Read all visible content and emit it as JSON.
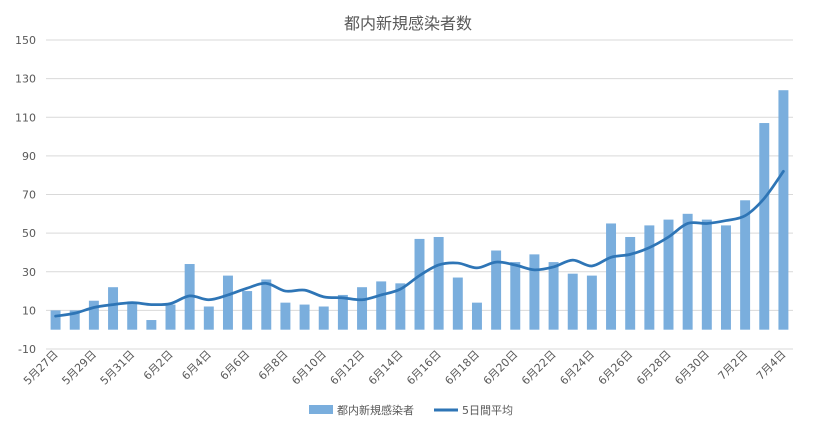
{
  "chart_data": {
    "type": "bar",
    "title": "都内新規感染者数",
    "xlabel": "",
    "ylabel": "",
    "ylim": [
      -10,
      150
    ],
    "yticks": [
      -10,
      10,
      30,
      50,
      70,
      90,
      110,
      130,
      150
    ],
    "grid": true,
    "legend_position": "bottom",
    "categories": [
      "5月27日",
      "5月28日",
      "5月29日",
      "5月30日",
      "5月31日",
      "6月1日",
      "6月2日",
      "6月3日",
      "6月4日",
      "6月5日",
      "6月6日",
      "6月7日",
      "6月8日",
      "6月9日",
      "6月10日",
      "6月11日",
      "6月12日",
      "6月13日",
      "6月14日",
      "6月15日",
      "6月16日",
      "6月17日",
      "6月18日",
      "6月19日",
      "6月20日",
      "6月21日",
      "6月22日",
      "6月23日",
      "6月24日",
      "6月25日",
      "6月26日",
      "6月27日",
      "6月28日",
      "6月29日",
      "6月30日",
      "7月1日",
      "7月2日",
      "7月3日",
      "7月4日"
    ],
    "x_tick_labels": [
      "5月27日",
      "5月29日",
      "5月31日",
      "6月2日",
      "6月4日",
      "6月6日",
      "6月8日",
      "6月10日",
      "6月12日",
      "6月14日",
      "6月16日",
      "6月18日",
      "6月20日",
      "6月22日",
      "6月24日",
      "6月26日",
      "6月28日",
      "6月30日",
      "7月2日",
      "7月4日"
    ],
    "series": [
      {
        "name": "都内新規感染者",
        "type": "bar",
        "color": "#7AAEDD",
        "values": [
          10,
          10,
          15,
          22,
          14,
          5,
          13,
          34,
          12,
          28,
          20,
          26,
          14,
          13,
          12,
          18,
          22,
          25,
          24,
          47,
          48,
          27,
          14,
          41,
          35,
          39,
          35,
          29,
          28,
          55,
          48,
          54,
          57,
          60,
          57,
          54,
          67,
          107,
          124
        ]
      },
      {
        "name": "5日間平均",
        "type": "line",
        "color": "#2E75B6",
        "values": [
          7,
          8.5,
          11.5,
          13,
          14,
          13,
          13.5,
          17.5,
          15.5,
          18,
          21.5,
          24,
          20,
          20.5,
          17,
          16.5,
          15.5,
          18,
          21,
          28,
          33.5,
          34.5,
          32,
          35,
          33.5,
          31,
          32.5,
          36,
          33,
          37.5,
          39,
          42.5,
          48,
          55,
          55,
          56.5,
          59,
          68,
          82
        ]
      }
    ]
  }
}
